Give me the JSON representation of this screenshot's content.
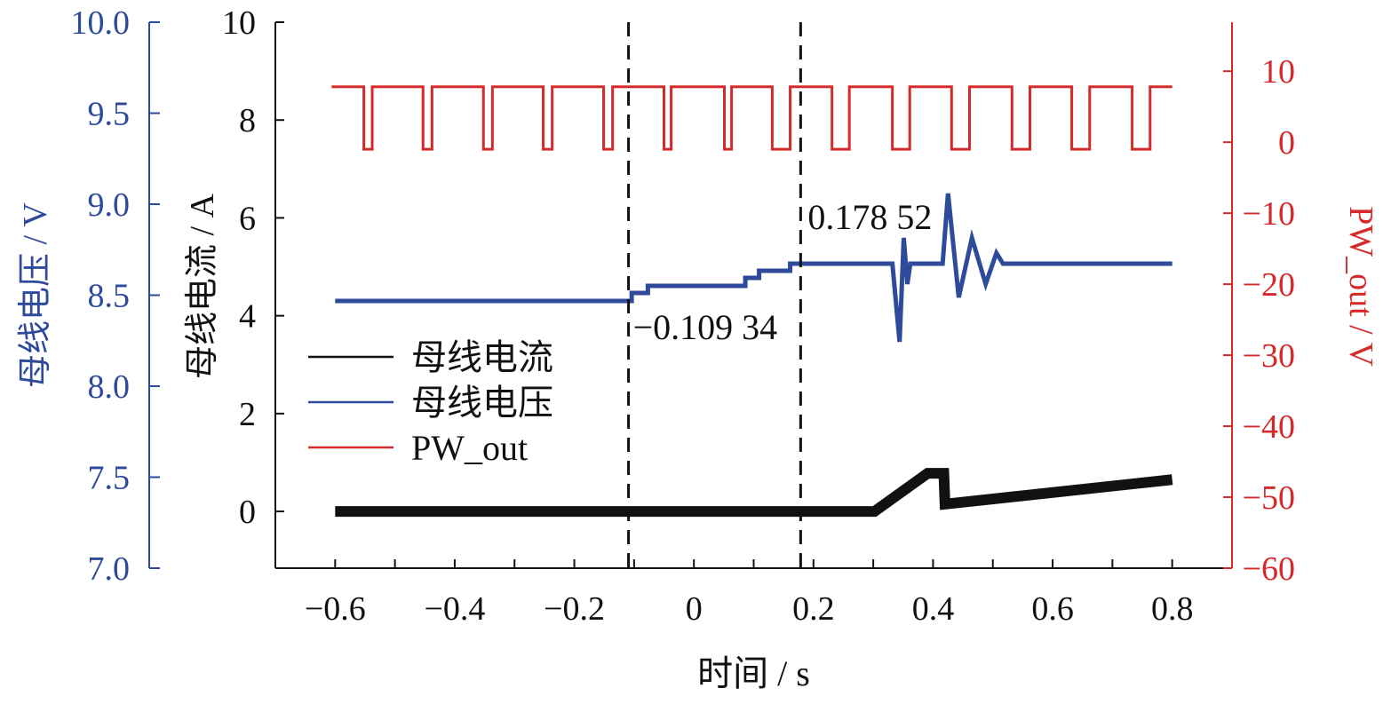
{
  "chart_data": {
    "type": "line",
    "xlabel": "时间 / s",
    "xlim": [
      -0.7,
      0.9
    ],
    "xticks": [
      -0.6,
      -0.4,
      -0.2,
      0,
      0.2,
      0.4,
      0.6,
      0.8
    ],
    "xtick_labels": [
      "−0.6",
      "−0.4",
      "−0.2",
      "0",
      "0.2",
      "0.4",
      "0.6",
      "0.8"
    ],
    "axes": {
      "current": {
        "label": "母线电流 / A",
        "ylim": [
          -1.16,
          10
        ],
        "ticks": [
          0,
          2,
          4,
          6,
          8,
          10
        ],
        "tick_labels": [
          "0",
          "2",
          "4",
          "6",
          "8",
          "10"
        ],
        "color": "#111111"
      },
      "voltage": {
        "label": "母线电压 / V",
        "ylim": [
          7.0,
          10.0
        ],
        "ticks": [
          7.0,
          7.5,
          8.0,
          8.5,
          9.0,
          9.5,
          10.0
        ],
        "tick_labels": [
          "7.0",
          "7.5",
          "8.0",
          "8.5",
          "9.0",
          "9.5",
          "10.0"
        ],
        "color": "#2e4a9a"
      },
      "pw": {
        "label": "PW_out / V",
        "ylim": [
          -60,
          16.9
        ],
        "ticks": [
          -60,
          -50,
          -40,
          -30,
          -20,
          -10,
          0,
          10
        ],
        "tick_labels": [
          "−60",
          "−50",
          "−40",
          "−30",
          "−20",
          "−10",
          "0",
          "10"
        ],
        "color": "#d42a2a"
      }
    },
    "vlines": [
      {
        "x": -0.10934,
        "label": "−0.109 34"
      },
      {
        "x": 0.17852,
        "label": "0.178 52"
      }
    ],
    "legend": {
      "position": "center-left",
      "entries": [
        "母线电流",
        "母线电压",
        "PW_out"
      ]
    },
    "series": [
      {
        "name": "母线电流",
        "axis": "current",
        "color": "#111111",
        "x": [
          -0.6,
          0.302,
          0.391,
          0.418,
          0.42,
          0.8
        ],
        "y": [
          0.0,
          0.0,
          0.78,
          0.78,
          0.15,
          0.65
        ]
      },
      {
        "name": "母线电压",
        "axis": "voltage",
        "color": "#2e4a9a",
        "x": [
          -0.6,
          -0.104,
          -0.104,
          -0.077,
          -0.077,
          0.086,
          0.086,
          0.109,
          0.109,
          0.161,
          0.161,
          0.332,
          0.344,
          0.351,
          0.357,
          0.362,
          0.416,
          0.425,
          0.443,
          0.465,
          0.488,
          0.506,
          0.517,
          0.8
        ],
        "y": [
          8.468,
          8.468,
          8.512,
          8.512,
          8.551,
          8.551,
          8.595,
          8.595,
          8.634,
          8.634,
          8.673,
          8.673,
          8.244,
          8.815,
          8.561,
          8.673,
          8.673,
          9.059,
          8.488,
          8.815,
          8.561,
          8.732,
          8.673,
          8.673
        ]
      },
      {
        "name": "PW_out",
        "axis": "pw",
        "color": "#d42a2a",
        "high": 7.8,
        "low": -1,
        "start": -0.606,
        "end": 0.8,
        "low_intervals": [
          [
            -0.552,
            -0.538
          ],
          [
            -0.453,
            -0.438
          ],
          [
            -0.352,
            -0.337
          ],
          [
            -0.252,
            -0.237
          ],
          [
            -0.151,
            -0.136
          ],
          [
            -0.05,
            -0.038
          ],
          [
            0.051,
            0.063
          ],
          [
            0.131,
            0.161
          ],
          [
            0.231,
            0.26
          ],
          [
            0.332,
            0.361
          ],
          [
            0.431,
            0.461
          ],
          [
            0.532,
            0.562
          ],
          [
            0.632,
            0.662
          ],
          [
            0.733,
            0.763
          ]
        ]
      }
    ]
  }
}
